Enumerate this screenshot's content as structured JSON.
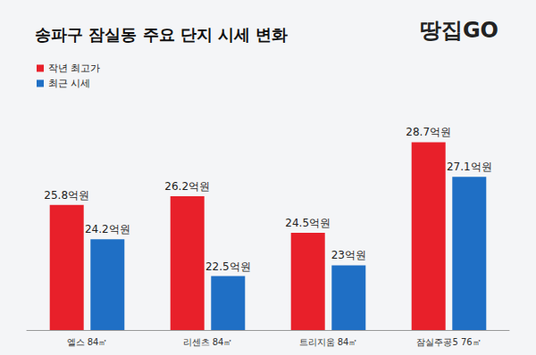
{
  "chart_data": {
    "type": "bar",
    "title": "송파구 잠실동 주요 단지 시세 변화",
    "annotations": [
      "땅집GO"
    ],
    "categories": [
      "엘스 84㎡",
      "리센츠 84㎡",
      "트리지움 84㎡",
      "잠실주공5 76㎡"
    ],
    "series": [
      {
        "name": "작년 최고가",
        "color": "#e8202a",
        "values": [
          25.8,
          26.2,
          24.5,
          28.7
        ],
        "value_labels": [
          "25.8억원",
          "26.2억원",
          "24.5억원",
          "28.7억원"
        ]
      },
      {
        "name": "최근 시세",
        "color": "#1f6fc5",
        "values": [
          24.2,
          22.5,
          23,
          27.1
        ],
        "value_labels": [
          "24.2억원",
          "22.5억원",
          "23억원",
          "27.1억원"
        ]
      }
    ],
    "ylim": [
      20,
      30
    ],
    "grid": false,
    "legend": "top-left",
    "data_labels": true,
    "tick_labels": "x"
  }
}
